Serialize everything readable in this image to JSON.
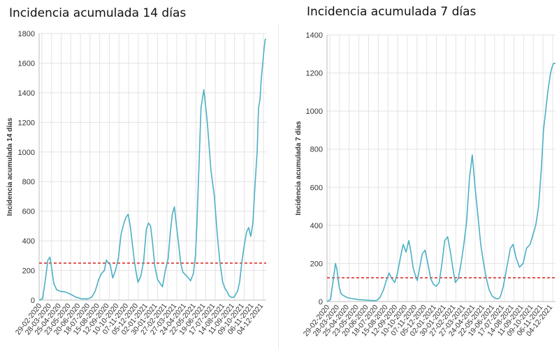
{
  "panels": [
    {
      "title": "Incidencia acumulada 14 días",
      "chart_data": {
        "type": "line",
        "title": "Incidencia acumulada 14 días",
        "xlabel": "",
        "ylabel": "Incidencia acumulada 14 días",
        "ylim": [
          0,
          1800
        ],
        "yticks": [
          0,
          200,
          400,
          600,
          800,
          1000,
          1200,
          1400,
          1600,
          1800
        ],
        "xlim": [
          0,
          648
        ],
        "grid": true,
        "xtick_labels": [
          "29-02-2020",
          "28-03-2020",
          "25-04-2020",
          "23-05-2020",
          "20-06-2020",
          "18-07-2020",
          "15-08-2020",
          "12-09-2020",
          "10-10-2020",
          "07-11-2020",
          "05-12-2020",
          "02-01-2021",
          "30-01-2021",
          "27-02-2021",
          "27-03-2021",
          "24-04-2021",
          "22-05-2021",
          "19-06-2021",
          "17-07-2021",
          "14-08-2021",
          "11-09-2021",
          "09-10-2021",
          "06-11-2021",
          "04-12-2021"
        ],
        "threshold": {
          "value": 250,
          "color": "#d9322b"
        },
        "series_color": "#4bb0c4",
        "series": [
          {
            "x": [
              0,
              10,
              18,
              25,
              31,
              36,
              42,
              50,
              60,
              75,
              90,
              105,
              120,
              135,
              140,
              150,
              160,
              170,
              178,
              186,
              192,
              198,
              203,
              210,
              218,
              226,
              234,
              242,
              248,
              254,
              260,
              266,
              272,
              276,
              282,
              290,
              298,
              306,
              312,
              318,
              324,
              330,
              338,
              346,
              352,
              360,
              368,
              374,
              380,
              386,
              392,
              398,
              404,
              410,
              418,
              426,
              432,
              440,
              446,
              450,
              456,
              462,
              470,
              480,
              490,
              500,
              508,
              516,
              524,
              530,
              536,
              542,
              548,
              556,
              566,
              572,
              578,
              586,
              592,
              598,
              604,
              610,
              616,
              622,
              626,
              630,
              634,
              638,
              642,
              645,
              648
            ],
            "y": [
              0,
              10,
              140,
              270,
              290,
              210,
              110,
              70,
              60,
              55,
              40,
              20,
              10,
              8,
              10,
              20,
              60,
              140,
              180,
              200,
              270,
              250,
              240,
              150,
              200,
              280,
              450,
              520,
              560,
              580,
              500,
              380,
              260,
              200,
              120,
              160,
              260,
              480,
              520,
              500,
              380,
              230,
              140,
              110,
              90,
              200,
              280,
              450,
              580,
              630,
              500,
              380,
              250,
              190,
              170,
              150,
              130,
              180,
              300,
              500,
              900,
              1300,
              1420,
              1200,
              880,
              700,
              450,
              250,
              120,
              80,
              60,
              30,
              20,
              20,
              60,
              120,
              250,
              380,
              460,
              490,
              430,
              520,
              780,
              1000,
              1300,
              1350,
              1500,
              1600,
              1700,
              1760,
              1760
            ]
          }
        ]
      }
    },
    {
      "title": "Incidencia acumulada 7 días",
      "chart_data": {
        "type": "line",
        "title": "Incidencia acumulada 7 días",
        "xlabel": "",
        "ylabel": "Incidencia acumulada 7 días",
        "ylim": [
          0,
          1400
        ],
        "yticks": [
          0,
          200,
          400,
          600,
          800,
          1000,
          1200,
          1400
        ],
        "xlim": [
          0,
          648
        ],
        "grid": true,
        "xtick_labels": [
          "29-02-2020",
          "28-03-2020",
          "25-04-2020",
          "23-05-2020",
          "20-06-2020",
          "18-07-2020",
          "15-08-2020",
          "12-09-2020",
          "10-10-2020",
          "07-11-2020",
          "05-12-2020",
          "02-01-2021",
          "30-01-2021",
          "27-02-2021",
          "27-03-2021",
          "24-04-2021",
          "22-05-2021",
          "19-06-2021",
          "17-07-2021",
          "14-08-2021",
          "11-09-2021",
          "09-10-2021",
          "06-11-2021",
          "04-12-2021"
        ],
        "threshold": {
          "value": 125,
          "color": "#d9322b"
        },
        "series_color": "#4bb0c4",
        "series": [
          {
            "x": [
              0,
              10,
              18,
              24,
              28,
              34,
              40,
              48,
              58,
              72,
              90,
              108,
              126,
              140,
              150,
              160,
              168,
              176,
              184,
              192,
              200,
              208,
              216,
              224,
              232,
              238,
              244,
              250,
              256,
              262,
              270,
              278,
              286,
              294,
              302,
              310,
              318,
              326,
              334,
              342,
              350,
              358,
              364,
              372,
              380,
              388,
              396,
              404,
              412,
              420,
              428,
              436,
              444,
              452,
              460,
              468,
              474,
              480,
              486,
              490,
              494,
              500,
              506,
              512,
              520,
              528,
              536,
              546,
              556,
              566,
              576,
              584,
              592,
              600,
              608,
              614,
              620,
              626,
              630,
              634,
              638,
              642,
              645,
              648
            ],
            "y": [
              0,
              10,
              120,
              200,
              170,
              80,
              40,
              30,
              20,
              15,
              10,
              8,
              5,
              5,
              20,
              60,
              110,
              150,
              120,
              100,
              150,
              230,
              300,
              260,
              320,
              260,
              180,
              140,
              110,
              170,
              250,
              270,
              200,
              120,
              90,
              80,
              100,
              200,
              320,
              340,
              260,
              160,
              100,
              120,
              200,
              300,
              420,
              650,
              770,
              600,
              450,
              300,
              200,
              120,
              60,
              30,
              20,
              15,
              15,
              20,
              40,
              80,
              140,
              200,
              280,
              300,
              230,
              180,
              200,
              280,
              300,
              350,
              400,
              500,
              700,
              900,
              1000,
              1100,
              1150,
              1200,
              1230,
              1250,
              1250,
              1250
            ]
          }
        ]
      }
    }
  ]
}
